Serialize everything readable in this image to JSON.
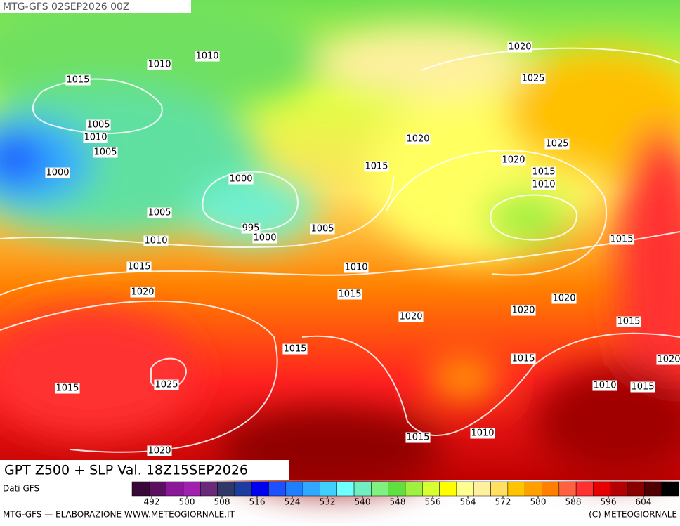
{
  "header": {
    "title": "MTG-GFS 02SEP2026 00Z"
  },
  "map": {
    "product": "GPT Z500 + SLP Val. 18Z15SEP2026",
    "isobar_labels": [
      "1010",
      "1010",
      "1015",
      "1005",
      "1010",
      "1005",
      "1000",
      "1000",
      "995",
      "1000",
      "1005",
      "1005",
      "1010",
      "1015",
      "1020",
      "1010",
      "1015",
      "1020",
      "1025",
      "1020",
      "1015",
      "1020",
      "1025",
      "1015",
      "1010",
      "1015",
      "1020",
      "1020",
      "1020",
      "1015",
      "1015",
      "1015",
      "1025",
      "1015",
      "1010",
      "1015",
      "1020",
      "1010",
      "1015",
      "1020"
    ]
  },
  "legend": {
    "source": "Dati GFS",
    "colors": [
      "#3a0838",
      "#5a0f5f",
      "#8a1898",
      "#a020b0",
      "#6a2a7a",
      "#303868",
      "#1c3ca0",
      "#0000f0",
      "#1e50ff",
      "#1e80ff",
      "#30a8ff",
      "#40d0ff",
      "#70ffff",
      "#70f0c0",
      "#80f080",
      "#60e040",
      "#a0f040",
      "#d8ff30",
      "#ffff00",
      "#ffff90",
      "#fff0a0",
      "#ffe060",
      "#ffc400",
      "#ffa000",
      "#ff8000",
      "#ff6040",
      "#ff3030",
      "#e80000",
      "#b40000",
      "#880000",
      "#500000",
      "#000000"
    ],
    "ticks": [
      492,
      500,
      508,
      516,
      524,
      532,
      540,
      548,
      556,
      564,
      572,
      580,
      588,
      596,
      604
    ]
  },
  "footer": {
    "left": "MTG-GFS — ELABORAZIONE WWW.METEOGIORNALE.IT",
    "right": "(C) METEOGIORNALE"
  }
}
